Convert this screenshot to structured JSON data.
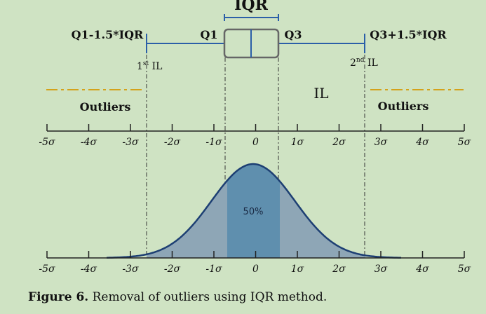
{
  "labels": {
    "iqr": "IQR",
    "q1_minus": "Q1-1.5*IQR",
    "q1": "Q1",
    "q3": "Q3",
    "q3_plus": "Q3+1.5*IQR",
    "first_il_num": "1",
    "first_il_sup": "st",
    "first_il_text": " IL",
    "second_il_num": "2",
    "second_il_sup": "nd",
    "second_il_text": " IL",
    "il": "IL",
    "outliers_left": "Outliers",
    "outliers_right": "Outliers",
    "percent": "50%"
  },
  "axis_ticks": [
    "-5σ",
    "-4σ",
    "-3σ",
    "-2σ",
    "-1σ",
    "0",
    "1σ",
    "2σ",
    "3σ",
    "4σ",
    "5σ"
  ],
  "colors": {
    "background": "#cfe3c3",
    "box_line": "#2b5fa8",
    "outlier_dash": "#d4a21a",
    "curve_stroke": "#1d3f73",
    "curve_fill_outer": "#8ea6b6",
    "curve_fill_inner": "#5f8fae",
    "axis": "#222222"
  },
  "caption": {
    "label": "Figure 6.",
    "text": " Removal of outliers using IQR method."
  }
}
